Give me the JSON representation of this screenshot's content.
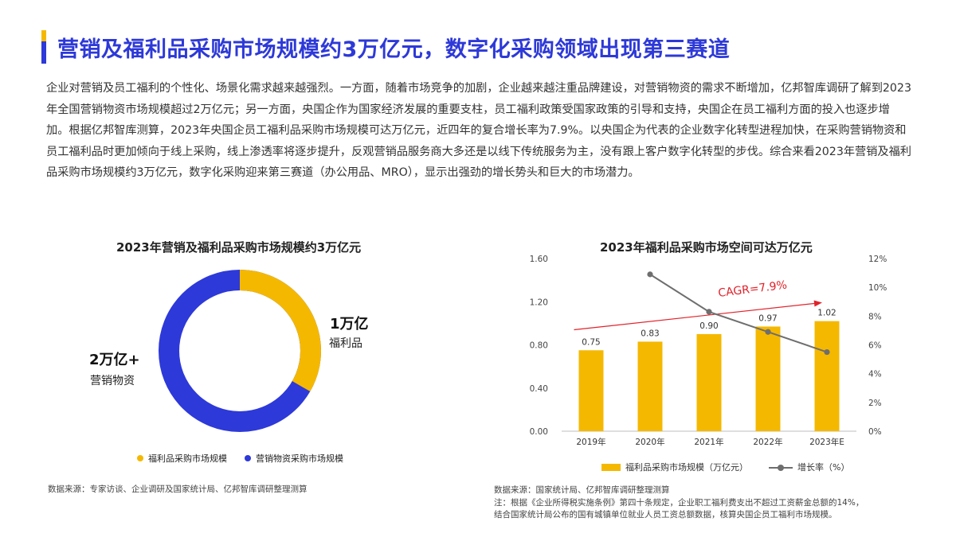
{
  "header": {
    "title": "营销及福利品采购市场规模约3万亿元，数字化采购领域出现第三赛道",
    "accent_colors": [
      "#f5b800",
      "#2d39d8"
    ]
  },
  "paragraph": "企业对营销及员工福利的个性化、场景化需求越来越强烈。一方面，随着市场竞争的加剧，企业越来越注重品牌建设，对营销物资的需求不断增加，亿邦智库调研了解到2023年全国营销物资市场规模超过2万亿元；另一方面，央国企作为国家经济发展的重要支柱，员工福利政策受国家政策的引导和支持，央国企在员工福利方面的投入也逐步增加。根据亿邦智库测算，2023年央国企员工福利品采购市场规模可达万亿元，近四年的复合增长率为7.9%。以央国企为代表的企业数字化转型进程加快，在采购营销物资和员工福利品时更加倾向于线上采购，线上渗透率将逐步提升，反观营销品服务商大多还是以线下传统服务为主，没有跟上客户数字化转型的步伐。综合来看2023年营销及福利品采购市场规模约3万亿元，数字化采购迎来第三赛道（办公用品、MRO），显示出强劲的增长势头和巨大的市场潜力。",
  "donut": {
    "title": "2023年营销及福利品采购市场规模约3万亿元",
    "welfare": {
      "value_label": "1万亿",
      "name": "福利品",
      "legend": "福利品采购市场规模"
    },
    "marketing": {
      "value_label": "2万亿+",
      "name": "营销物资",
      "legend": "营销物资采购市场规模"
    },
    "source": "数据来源：专家访谈、企业调研及国家统计局、亿邦智库调研整理测算"
  },
  "bar_chart": {
    "title": "2023年福利品采购市场空间可达万亿元",
    "cagr_label": "CAGR=7.9%",
    "legend_bar": "福利品采购市场规模（万亿元）",
    "legend_line": "增长率（%）",
    "source_lines": [
      "数据来源：国家统计局、亿邦智库调研整理测算",
      "注：根据《企业所得税实施条例》第四十条规定，企业职工福利费支出不超过工资薪金总额的14%，",
      "结合国家统计局公布的国有城镇单位就业人员工资总额数据，核算央国企员工福利市场规模。"
    ]
  },
  "chart_data": [
    {
      "type": "pie",
      "title": "2023年营销及福利品采购市场规模约3万亿元",
      "labels": [
        "福利品采购市场规模",
        "营销物资采购市场规模"
      ],
      "values": [
        1,
        2
      ],
      "value_labels": [
        "1万亿",
        "2万亿+"
      ],
      "colors": [
        "#f5b800",
        "#2d39d8"
      ],
      "legend_position": "bottom"
    },
    {
      "type": "bar",
      "title": "2023年福利品采购市场空间可达万亿元",
      "categories": [
        "2019年",
        "2020年",
        "2021年",
        "2022年",
        "2023年E"
      ],
      "series": [
        {
          "name": "福利品采购市场规模（万亿元）",
          "type": "bar",
          "axis": "left",
          "values": [
            0.75,
            0.83,
            0.9,
            0.97,
            1.02
          ],
          "color": "#f5b800"
        },
        {
          "name": "增长率（%）",
          "type": "line",
          "axis": "right",
          "values": [
            null,
            10.9,
            8.3,
            6.9,
            5.5
          ],
          "color": "#6e6e6e"
        }
      ],
      "y_left": {
        "ylim": [
          0,
          1.6
        ],
        "ticks": [
          "0.00",
          "0.40",
          "0.80",
          "1.20",
          "1.60"
        ]
      },
      "y_right": {
        "ylim": [
          0,
          12
        ],
        "ticks": [
          "0%",
          "2%",
          "4%",
          "6%",
          "8%",
          "10%",
          "12%"
        ]
      },
      "annotation": {
        "text": "CAGR=7.9%",
        "color": "#e0232b"
      },
      "legend_position": "bottom"
    }
  ]
}
